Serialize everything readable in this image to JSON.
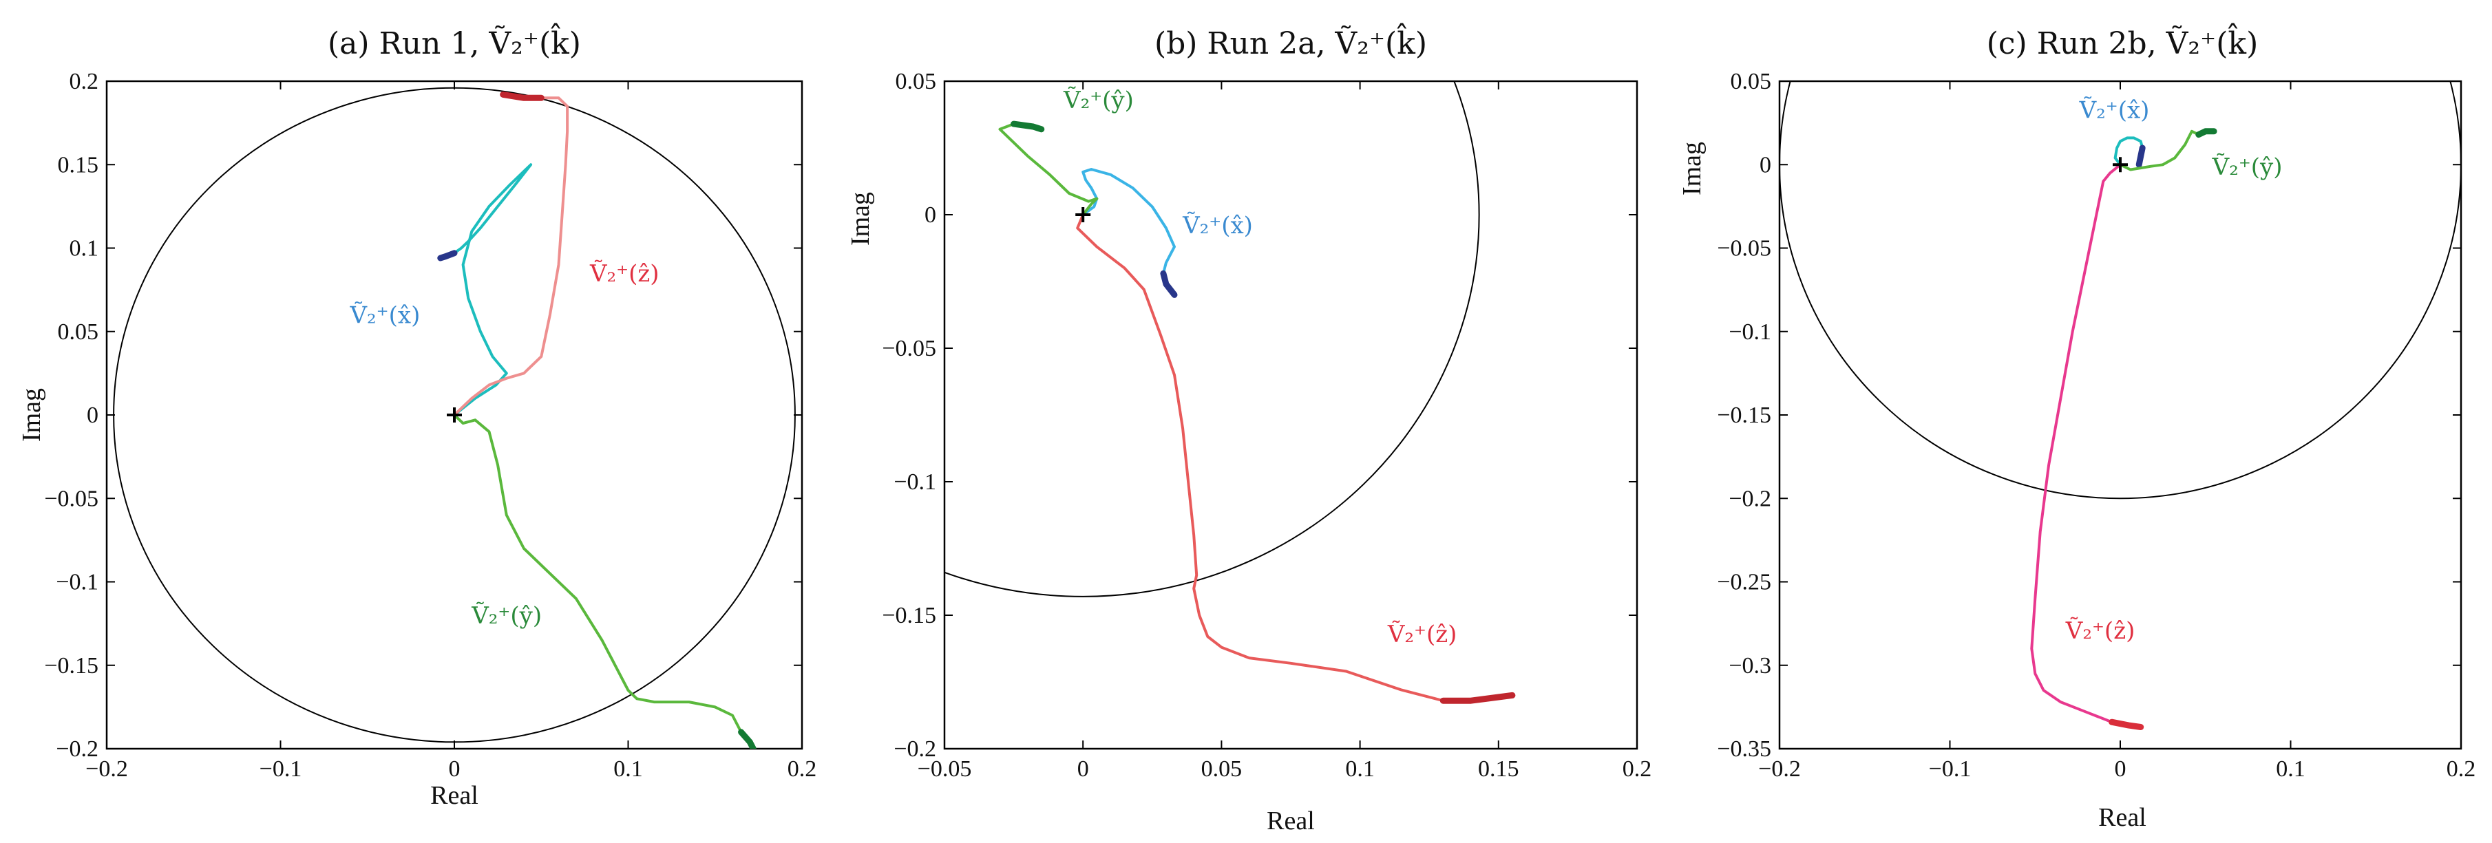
{
  "colors": {
    "green": "#5ab83c",
    "dark_green": "#137a33",
    "cyan": "#1cbdbd",
    "light_blue": "#3ab4e6",
    "dark_blue": "#28368a",
    "pink_red": "#ee8f8f",
    "red": "#e85a5a",
    "dark_red": "#c0262e",
    "magenta": "#e8388e",
    "red_end": "#d92e3a"
  },
  "chart_data": [
    {
      "type": "line",
      "title": "(a) Run 1, Ṽ₂⁺(k̂)",
      "xlabel": "Real",
      "ylabel": "Imag",
      "xlim": [
        -0.2,
        0.2
      ],
      "ylim": [
        -0.2,
        0.2
      ],
      "xticks": [
        -0.2,
        -0.1,
        0,
        0.1,
        0.2
      ],
      "xtick_labels": [
        "−0.2",
        "−0.1",
        "0",
        "0.1",
        "0.2"
      ],
      "yticks": [
        -0.2,
        -0.15,
        -0.1,
        -0.05,
        0,
        0.05,
        0.1,
        0.15,
        0.2
      ],
      "ytick_labels": [
        "−0.2",
        "−0.15",
        "−0.1",
        "−0.05",
        "0",
        "0.05",
        "0.1",
        "0.15",
        "0.2"
      ],
      "circle": {
        "center": [
          0,
          0
        ],
        "radius": 0.196
      },
      "origin_marker": [
        0,
        0
      ],
      "series": [
        {
          "name": "Ṽ₂⁺(x̂)",
          "color": "#1cbdbd",
          "end_color": "#28368a",
          "x": [
            0,
            0.012,
            0.024,
            0.03,
            0.022,
            0.015,
            0.008,
            0.005,
            0.01,
            0.02,
            0.032,
            0.04,
            0.044,
            0.035,
            0.025,
            0.015,
            0.008,
            0.004,
            0.0,
            -0.005,
            -0.008
          ],
          "y": [
            0,
            0.01,
            0.018,
            0.025,
            0.035,
            0.05,
            0.07,
            0.09,
            0.11,
            0.125,
            0.138,
            0.146,
            0.15,
            0.138,
            0.125,
            0.112,
            0.104,
            0.1,
            0.097,
            0.095,
            0.094
          ]
        },
        {
          "name": "Ṽ₂⁺(ŷ)",
          "color": "#5ab83c",
          "end_color": "#137a33",
          "x": [
            0,
            0.005,
            0.012,
            0.02,
            0.025,
            0.03,
            0.04,
            0.055,
            0.07,
            0.085,
            0.095,
            0.1,
            0.105,
            0.115,
            0.135,
            0.15,
            0.16,
            0.165,
            0.17,
            0.172
          ],
          "y": [
            0,
            -0.005,
            -0.003,
            -0.01,
            -0.03,
            -0.06,
            -0.08,
            -0.095,
            -0.11,
            -0.135,
            -0.155,
            -0.165,
            -0.17,
            -0.172,
            -0.172,
            -0.175,
            -0.18,
            -0.19,
            -0.196,
            -0.2
          ]
        },
        {
          "name": "Ṽ₂⁺(ẑ)",
          "color": "#ee8f8f",
          "end_color": "#c0262e",
          "x": [
            0,
            0.01,
            0.02,
            0.03,
            0.04,
            0.05,
            0.055,
            0.06,
            0.062,
            0.064,
            0.065,
            0.065,
            0.06,
            0.05,
            0.04,
            0.028
          ],
          "y": [
            0,
            0.01,
            0.018,
            0.022,
            0.025,
            0.035,
            0.06,
            0.09,
            0.12,
            0.15,
            0.17,
            0.185,
            0.19,
            0.19,
            0.19,
            0.192
          ]
        }
      ],
      "annotations": [
        {
          "text": "Ṽ₂⁺(x̂)",
          "x": -0.06,
          "y": 0.055,
          "color": "#3a8ad0"
        },
        {
          "text": "Ṽ₂⁺(ẑ)",
          "x": 0.078,
          "y": 0.08,
          "color": "#e03040"
        },
        {
          "text": "Ṽ₂⁺(ŷ)",
          "x": 0.01,
          "y": -0.125,
          "color": "#2a8a3a"
        }
      ]
    },
    {
      "type": "line",
      "title": "(b) Run 2a, Ṽ₂⁺(k̂)",
      "xlabel": "Real",
      "ylabel": "Imag",
      "xlim": [
        -0.05,
        0.2
      ],
      "ylim": [
        -0.2,
        0.05
      ],
      "xticks": [
        -0.05,
        0,
        0.05,
        0.1,
        0.15,
        0.2
      ],
      "xtick_labels": [
        "−0.05",
        "0",
        "0.05",
        "0.1",
        "0.15",
        "0.2"
      ],
      "yticks": [
        -0.2,
        -0.15,
        -0.1,
        -0.05,
        0,
        0.05
      ],
      "ytick_labels": [
        "−0.2",
        "−0.15",
        "−0.1",
        "−0.05",
        "0",
        "0.05"
      ],
      "circle": {
        "center": [
          0,
          0
        ],
        "radius": 0.143
      },
      "origin_marker": [
        0,
        0
      ],
      "series": [
        {
          "name": "Ṽ₂⁺(x̂)",
          "color": "#3ab4e6",
          "end_color": "#28368a",
          "x": [
            0,
            0.004,
            0.005,
            0.003,
            0.001,
            0.0,
            0.003,
            0.01,
            0.018,
            0.025,
            0.03,
            0.033,
            0.03,
            0.029,
            0.03,
            0.033
          ],
          "y": [
            0,
            0.003,
            0.006,
            0.01,
            0.013,
            0.016,
            0.017,
            0.015,
            0.01,
            0.003,
            -0.005,
            -0.012,
            -0.018,
            -0.022,
            -0.026,
            -0.03
          ]
        },
        {
          "name": "Ṽ₂⁺(ŷ)",
          "color": "#5ab83c",
          "end_color": "#137a33",
          "x": [
            0,
            0.003,
            0.005,
            0.002,
            -0.005,
            -0.012,
            -0.02,
            -0.03,
            -0.025,
            -0.018,
            -0.015
          ],
          "y": [
            0,
            0.004,
            0.006,
            0.005,
            0.008,
            0.015,
            0.022,
            0.032,
            0.034,
            0.033,
            0.032
          ]
        },
        {
          "name": "Ṽ₂⁺(ẑ)",
          "color": "#e85a5a",
          "end_color": "#c0262e",
          "x": [
            0,
            -0.002,
            0.005,
            0.015,
            0.022,
            0.028,
            0.033,
            0.036,
            0.038,
            0.04,
            0.041,
            0.04,
            0.042,
            0.045,
            0.05,
            0.06,
            0.075,
            0.095,
            0.115,
            0.13,
            0.14,
            0.155
          ],
          "y": [
            0,
            -0.005,
            -0.012,
            -0.02,
            -0.028,
            -0.045,
            -0.06,
            -0.08,
            -0.1,
            -0.12,
            -0.135,
            -0.14,
            -0.15,
            -0.158,
            -0.162,
            -0.166,
            -0.168,
            -0.171,
            -0.178,
            -0.182,
            -0.182,
            -0.18
          ]
        }
      ],
      "annotations": [
        {
          "text": "Ṽ₂⁺(ŷ)",
          "x": -0.007,
          "y": 0.04,
          "color": "#2a8a3a"
        },
        {
          "text": "Ṽ₂⁺(x̂)",
          "x": 0.036,
          "y": -0.007,
          "color": "#3a8ad0"
        },
        {
          "text": "Ṽ₂⁺(ẑ)",
          "x": 0.11,
          "y": -0.16,
          "color": "#e03040"
        }
      ]
    },
    {
      "type": "line",
      "title": "(c) Run 2b, Ṽ₂⁺(k̂)",
      "xlabel": "Real",
      "ylabel": "Imag",
      "xlim": [
        -0.2,
        0.2
      ],
      "ylim": [
        -0.35,
        0.05
      ],
      "xticks": [
        -0.2,
        -0.1,
        0,
        0.1,
        0.2
      ],
      "xtick_labels": [
        "−0.2",
        "−0.1",
        "0",
        "0.1",
        "0.2"
      ],
      "yticks": [
        -0.35,
        -0.3,
        -0.25,
        -0.2,
        -0.15,
        -0.1,
        -0.05,
        0,
        0.05
      ],
      "ytick_labels": [
        "−0.35",
        "−0.3",
        "−0.25",
        "−0.2",
        "−0.15",
        "−0.1",
        "−0.05",
        "0",
        "0.05"
      ],
      "circle": {
        "center": [
          0,
          0
        ],
        "radius": 0.2
      },
      "origin_marker": [
        0,
        0
      ],
      "series": [
        {
          "name": "Ṽ₂⁺(x̂)",
          "color": "#1cbdbd",
          "end_color": "#28368a",
          "x": [
            0,
            -0.003,
            -0.002,
            0.0,
            0.004,
            0.008,
            0.012,
            0.013,
            0.012,
            0.011
          ],
          "y": [
            0,
            0.004,
            0.01,
            0.014,
            0.016,
            0.016,
            0.014,
            0.01,
            0.005,
            0.0
          ]
        },
        {
          "name": "Ṽ₂⁺(ŷ)",
          "color": "#5ab83c",
          "end_color": "#137a33",
          "x": [
            0,
            0.006,
            0.012,
            0.018,
            0.025,
            0.032,
            0.038,
            0.042,
            0.046,
            0.05,
            0.055
          ],
          "y": [
            0,
            -0.003,
            -0.002,
            -0.001,
            0.0,
            0.004,
            0.012,
            0.02,
            0.018,
            0.02,
            0.02
          ]
        },
        {
          "name": "Ṽ₂⁺(ẑ)",
          "color": "#e8388e",
          "end_color": "#d92e3a",
          "x": [
            0,
            -0.006,
            -0.01,
            -0.012,
            -0.02,
            -0.028,
            -0.035,
            -0.042,
            -0.047,
            -0.05,
            -0.052,
            -0.05,
            -0.045,
            -0.035,
            -0.02,
            -0.005,
            0.005,
            0.012
          ],
          "y": [
            0,
            -0.005,
            -0.01,
            -0.02,
            -0.06,
            -0.1,
            -0.14,
            -0.18,
            -0.22,
            -0.26,
            -0.29,
            -0.305,
            -0.315,
            -0.322,
            -0.328,
            -0.334,
            -0.336,
            -0.337
          ]
        }
      ],
      "annotations": [
        {
          "text": "Ṽ₂⁺(x̂)",
          "x": -0.024,
          "y": 0.028,
          "color": "#3a8ad0"
        },
        {
          "text": "Ṽ₂⁺(ŷ)",
          "x": 0.054,
          "y": -0.006,
          "color": "#2a8a3a"
        },
        {
          "text": "Ṽ₂⁺(ẑ)",
          "x": -0.032,
          "y": -0.284,
          "color": "#e03040"
        }
      ]
    }
  ]
}
